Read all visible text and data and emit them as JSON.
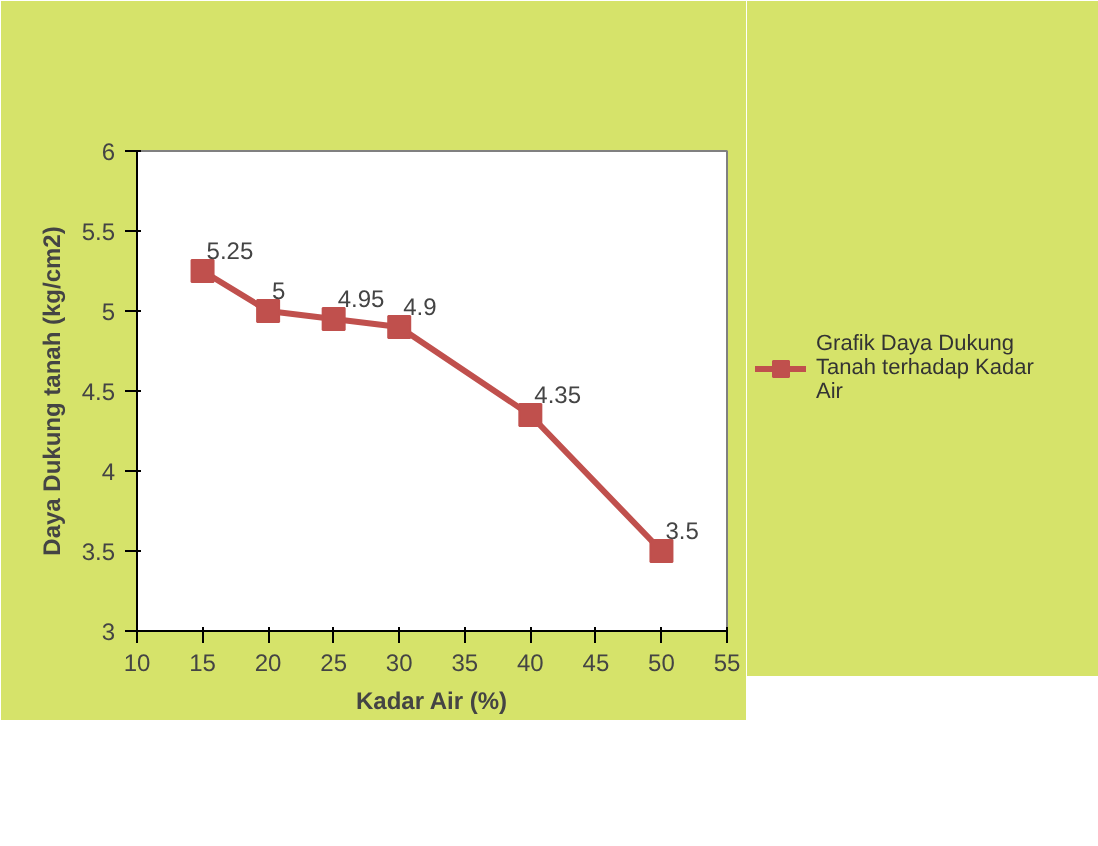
{
  "chart_data": {
    "type": "line",
    "xlabel": "Kadar Air (%)",
    "ylabel": "Daya Dukung tanah (kg/cm2)",
    "x": [
      15,
      20,
      25,
      30,
      40,
      50
    ],
    "series": [
      {
        "name": "Grafik Daya Dukung Tanah terhadap Kadar Air",
        "color": "#c0504d",
        "values": [
          5.25,
          5,
          4.95,
          4.9,
          4.35,
          3.5
        ]
      }
    ],
    "xlim": [
      10,
      55
    ],
    "xticks": [
      10,
      15,
      20,
      25,
      30,
      35,
      40,
      45,
      50,
      55
    ],
    "ylim": [
      3,
      6
    ],
    "yticks": [
      3,
      3.5,
      4,
      4.5,
      5,
      5.5,
      6
    ],
    "marker": "square",
    "line_style": "solid",
    "data_labels": true,
    "grid": false,
    "legend": "right"
  }
}
